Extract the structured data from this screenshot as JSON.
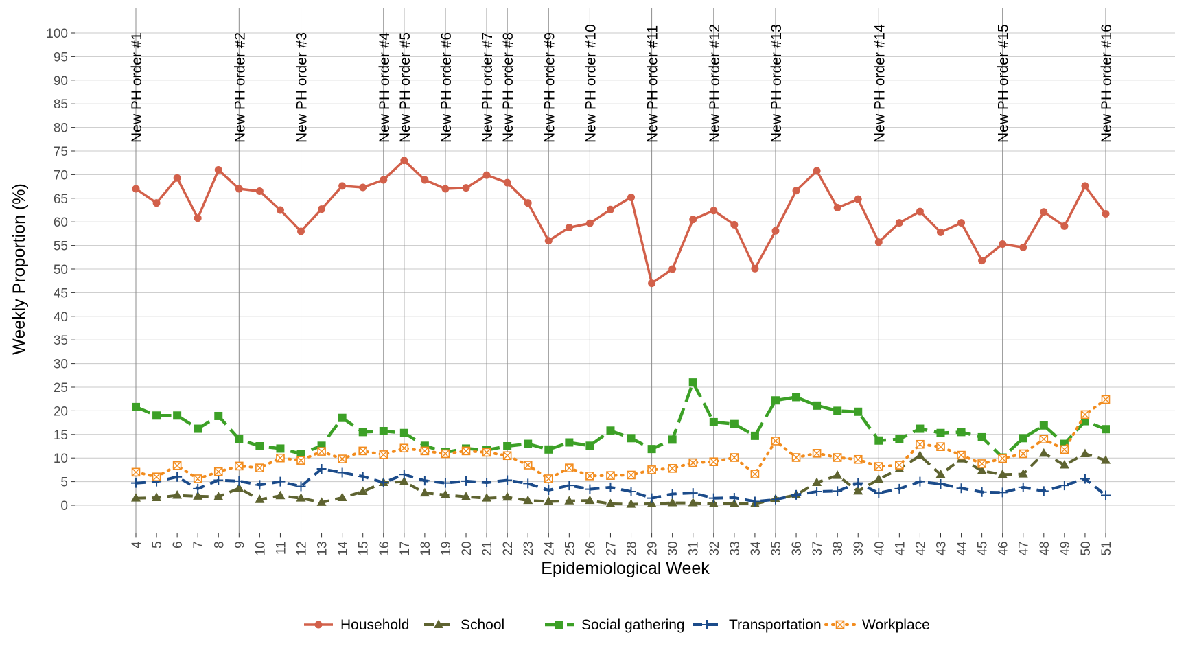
{
  "chart_data": {
    "type": "line",
    "xlabel": "Epidemiological Week",
    "ylabel": "Weekly Proportion (%)",
    "ylim": [
      -5,
      100
    ],
    "yticks": [
      0,
      5,
      10,
      15,
      20,
      25,
      30,
      35,
      40,
      45,
      50,
      55,
      60,
      65,
      70,
      75,
      80,
      85,
      90,
      95,
      100
    ],
    "x": [
      4,
      5,
      6,
      7,
      8,
      9,
      10,
      11,
      12,
      13,
      14,
      15,
      16,
      17,
      18,
      19,
      20,
      21,
      22,
      23,
      24,
      25,
      26,
      27,
      28,
      29,
      30,
      31,
      32,
      33,
      34,
      35,
      36,
      37,
      38,
      39,
      40,
      41,
      42,
      43,
      44,
      45,
      46,
      47,
      48,
      49,
      50,
      51
    ],
    "grid": true,
    "legend_position": "bottom",
    "series": [
      {
        "name": "Household",
        "color": "#D2604A",
        "line": "solid",
        "marker": "circle",
        "values": [
          67,
          64,
          69.3,
          60.8,
          71,
          67,
          66.5,
          62.5,
          58,
          62.7,
          67.6,
          67.3,
          68.9,
          73,
          68.9,
          67,
          67.2,
          69.9,
          68.3,
          64,
          56,
          58.8,
          59.7,
          62.6,
          65.2,
          47,
          50,
          60.5,
          62.4,
          59.4,
          50.1,
          58.1,
          66.6,
          70.8,
          63,
          64.8,
          55.7,
          59.8,
          62.2,
          57.8,
          59.8,
          51.8,
          55.3,
          54.6,
          62.1,
          59.1,
          67.6,
          61.7
        ]
      },
      {
        "name": "School",
        "color": "#5E6330",
        "line": "dashed",
        "marker": "triangle",
        "values": [
          1.5,
          1.6,
          2.1,
          1.9,
          1.8,
          3.6,
          1.2,
          2,
          1.5,
          0.6,
          1.6,
          2.9,
          4.8,
          5,
          2.6,
          2.2,
          1.8,
          1.5,
          1.7,
          1,
          0.8,
          0.9,
          1,
          0.3,
          0.2,
          0.3,
          0.5,
          0.5,
          0.3,
          0.3,
          0.3,
          1.3,
          2.2,
          4.8,
          6.3,
          3,
          5.5,
          7.7,
          10.5,
          6.5,
          9.8,
          7.3,
          6.5,
          6.6,
          11,
          8.5,
          10.9,
          9.5
        ]
      },
      {
        "name": "Social gathering",
        "color": "#3CA026",
        "line": "longdash",
        "marker": "square",
        "values": [
          20.8,
          19,
          19,
          16.2,
          18.9,
          14,
          12.5,
          12,
          10.9,
          12.6,
          18.5,
          15.5,
          15.7,
          15.3,
          12.6,
          11.2,
          12,
          11.7,
          12.5,
          13,
          11.8,
          13.3,
          12.6,
          15.8,
          14.2,
          11.9,
          13.9,
          26,
          17.6,
          17.2,
          14.7,
          22.2,
          22.9,
          21.1,
          20,
          19.8,
          13.7,
          14,
          16.2,
          15.3,
          15.5,
          14.4,
          10.1,
          14.2,
          16.9,
          13,
          17.8,
          16.1
        ]
      },
      {
        "name": "Transportation",
        "color": "#1B4B8A",
        "line": "dashed",
        "marker": "plus",
        "values": [
          4.7,
          5,
          6,
          3.5,
          5.3,
          5.1,
          4.3,
          5,
          4,
          7.7,
          6.9,
          6.1,
          4.8,
          6.5,
          5.2,
          4.7,
          5.1,
          4.8,
          5.3,
          4.6,
          3.2,
          4.2,
          3.4,
          3.8,
          2.9,
          1.5,
          2.4,
          2.6,
          1.5,
          1.6,
          0.8,
          1.2,
          2.2,
          2.9,
          3,
          4.7,
          2.6,
          3.5,
          5,
          4.5,
          3.6,
          2.8,
          2.7,
          3.8,
          3,
          4.2,
          5.6,
          2.1
        ]
      },
      {
        "name": "Workplace",
        "color": "#F28C1E",
        "line": "dotted",
        "marker": "boxx",
        "values": [
          7,
          6,
          8.4,
          5.6,
          7.1,
          8.3,
          7.9,
          10,
          9.5,
          11.4,
          9.8,
          11.5,
          10.7,
          12.1,
          11.5,
          10.9,
          11.5,
          11.2,
          10.5,
          8.5,
          5.6,
          7.9,
          6.2,
          6.3,
          6.4,
          7.5,
          7.8,
          9,
          9.2,
          10.1,
          6.6,
          13.6,
          10.1,
          11,
          10.1,
          9.7,
          8.2,
          8.5,
          12.9,
          12.4,
          10.6,
          8.8,
          9.9,
          10.9,
          14,
          11.8,
          19.2,
          22.4
        ]
      }
    ],
    "annotations": [
      {
        "week": 4,
        "label": "New PH order #1"
      },
      {
        "week": 9,
        "label": "New PH order #2"
      },
      {
        "week": 12,
        "label": "New PH order #3"
      },
      {
        "week": 16,
        "label": "New PH order #4"
      },
      {
        "week": 17,
        "label": "New PH order #5"
      },
      {
        "week": 19,
        "label": "New PH order #6"
      },
      {
        "week": 21,
        "label": "New PH order #7"
      },
      {
        "week": 22,
        "label": "New PH order #8"
      },
      {
        "week": 24,
        "label": "New PH order #9"
      },
      {
        "week": 26,
        "label": "New PH order #10"
      },
      {
        "week": 29,
        "label": "New PH order #11"
      },
      {
        "week": 32,
        "label": "New PH order #12"
      },
      {
        "week": 35,
        "label": "New PH order #13"
      },
      {
        "week": 40,
        "label": "New PH order #14"
      },
      {
        "week": 46,
        "label": "New PH order #15"
      },
      {
        "week": 51,
        "label": "New PH order #16"
      }
    ]
  }
}
